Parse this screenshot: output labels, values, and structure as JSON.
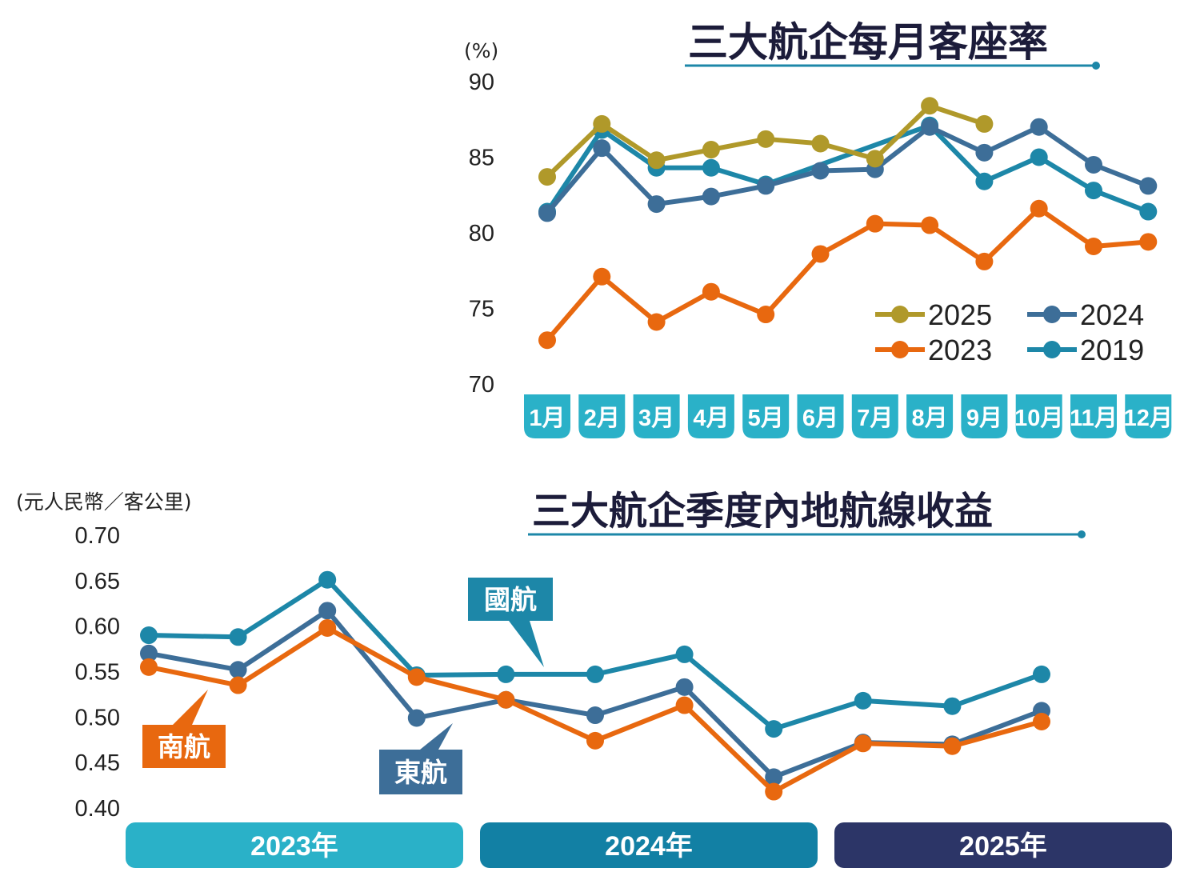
{
  "chart_data": [
    {
      "type": "line",
      "title": "三大航企每月客座率",
      "unit": "(%)",
      "ylim": [
        70,
        90
      ],
      "y_ticks": [
        "90",
        "85",
        "80",
        "75",
        "70"
      ],
      "categories": [
        "1月",
        "2月",
        "3月",
        "4月",
        "5月",
        "6月",
        "7月",
        "8月",
        "9月",
        "10月",
        "11月",
        "12月"
      ],
      "legend_position": "bottom-right",
      "series": [
        {
          "name": "2025",
          "color": "#b0992a",
          "values": [
            83.7,
            87.2,
            84.8,
            85.5,
            86.2,
            85.9,
            84.9,
            88.4,
            87.2,
            null,
            null,
            null
          ]
        },
        {
          "name": "2024",
          "color": "#3d6e98",
          "values": [
            81.3,
            85.6,
            81.9,
            82.4,
            83.1,
            84.1,
            84.2,
            87.0,
            85.3,
            87.0,
            84.5,
            83.1
          ]
        },
        {
          "name": "2023",
          "color": "#e8680f",
          "values": [
            72.9,
            77.1,
            74.1,
            76.1,
            74.6,
            78.6,
            80.6,
            80.5,
            78.1,
            81.6,
            79.1,
            79.4
          ]
        },
        {
          "name": "2019",
          "color": "#1d87a8",
          "values": [
            81.4,
            86.8,
            84.3,
            84.3,
            83.2,
            null,
            null,
            87.1,
            83.4,
            85.0,
            82.8,
            81.4
          ]
        }
      ]
    },
    {
      "type": "line",
      "title": "三大航企季度內地航線收益",
      "unit": "(元人民幣／客公里)",
      "ylim": [
        0.4,
        0.7
      ],
      "y_ticks": [
        "0.70",
        "0.65",
        "0.60",
        "0.55",
        "0.50",
        "0.45",
        "0.40"
      ],
      "years": [
        "2023年",
        "2024年",
        "2025年"
      ],
      "quarters_per_year": 4,
      "series": [
        {
          "name": "國航",
          "color": "#1d87a8",
          "values": [
            0.59,
            0.588,
            0.651,
            0.546,
            0.547,
            0.547,
            0.569,
            0.487,
            0.518,
            0.512,
            0.547
          ]
        },
        {
          "name": "東航",
          "color": "#3d6e98",
          "values": [
            0.57,
            0.552,
            0.617,
            0.499,
            0.519,
            0.502,
            0.533,
            0.434,
            0.472,
            0.47,
            0.507
          ]
        },
        {
          "name": "南航",
          "color": "#e8680f",
          "values": [
            0.555,
            0.535,
            0.598,
            0.544,
            0.519,
            0.474,
            0.513,
            0.418,
            0.471,
            0.468,
            0.495
          ]
        }
      ]
    }
  ],
  "colors": {
    "month_tab": "#2ab1c8",
    "year_2023": "#2ab1c8",
    "year_2024": "#1280a4",
    "year_2025": "#2c3567",
    "title_underline": "#1d87a8"
  }
}
